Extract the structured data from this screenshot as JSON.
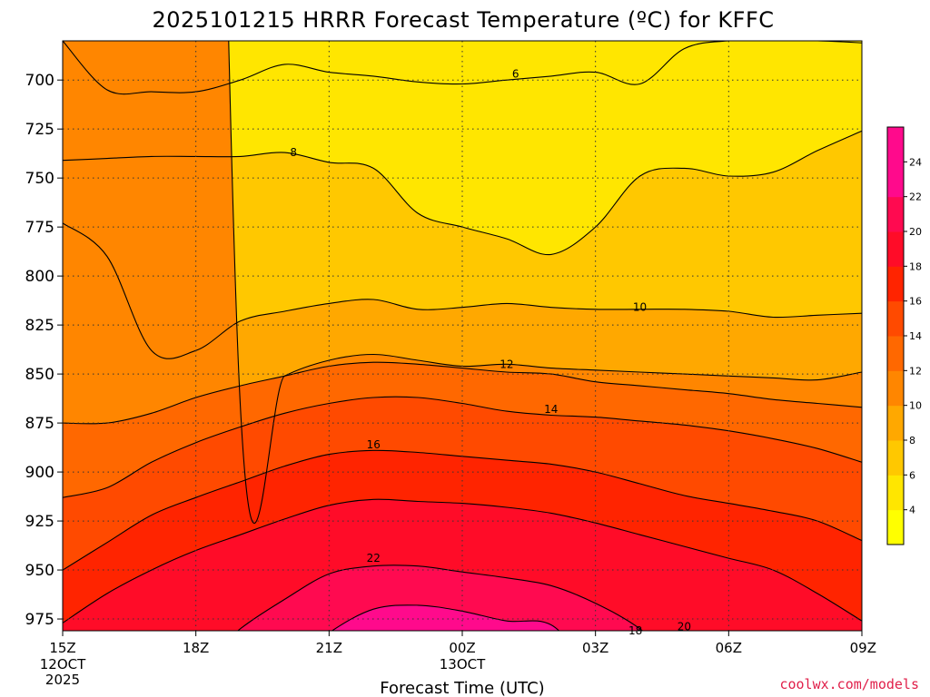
{
  "chart_data": {
    "type": "heatmap",
    "title": "2025101215 HRRR Forecast Temperature (ºC) for KFFC",
    "xlabel": "Forecast Time (UTC)",
    "x_ticks": [
      {
        "label": "15Z",
        "sub": [
          "12OCT",
          "2025"
        ]
      },
      {
        "label": "18Z",
        "sub": []
      },
      {
        "label": "21Z",
        "sub": []
      },
      {
        "label": "00Z",
        "sub": [
          "13OCT"
        ]
      },
      {
        "label": "03Z",
        "sub": []
      },
      {
        "label": "06Z",
        "sub": []
      },
      {
        "label": "09Z",
        "sub": []
      }
    ],
    "y_ticks": [
      "700",
      "725",
      "750",
      "775",
      "800",
      "825",
      "850",
      "875",
      "900",
      "925",
      "950",
      "975"
    ],
    "ylim": [
      981,
      680
    ],
    "grid": true,
    "x_hours": [
      0,
      1,
      2,
      3,
      4,
      5,
      6,
      7,
      8,
      9,
      10,
      11,
      12,
      13,
      14,
      15,
      16,
      17,
      18
    ],
    "contour_levels": [
      {
        "level": 6,
        "label": "6",
        "color": "#ffe600",
        "pressure": [
          680,
          705,
          706,
          706,
          700,
          692,
          696,
          698,
          701,
          702,
          700,
          698,
          696,
          702,
          684,
          680,
          680,
          680,
          681
        ]
      },
      {
        "level": 8,
        "label": "8",
        "color": "#ffc800",
        "pressure": [
          741,
          740,
          739,
          739,
          739,
          737,
          742,
          745,
          768,
          775,
          781,
          789,
          775,
          749,
          745,
          749,
          747,
          736,
          726
        ]
      },
      {
        "level": 10,
        "label": "10",
        "color": "#ffa800",
        "pressure": [
          773,
          790,
          838,
          838,
          823,
          818,
          814,
          812,
          817,
          816,
          814,
          816,
          817,
          817,
          817,
          818,
          821,
          820,
          819
        ]
      },
      {
        "level": 12,
        "label": "12",
        "color": "#ff8600",
        "pressure": [
          0,
          0,
          0,
          0,
          866,
          851,
          843,
          840,
          843,
          846,
          845,
          847,
          848,
          849,
          850,
          851,
          852,
          853,
          849
        ]
      },
      {
        "level": 14,
        "label": "14",
        "color": "#ff6800",
        "pressure": [
          875,
          875,
          870,
          862,
          856,
          851,
          846,
          844,
          845,
          847,
          849,
          850,
          854,
          856,
          858,
          860,
          863,
          865,
          867
        ]
      },
      {
        "level": 16,
        "label": "16",
        "color": "#ff4a00",
        "pressure": [
          913,
          908,
          895,
          885,
          877,
          870,
          865,
          862,
          862,
          865,
          869,
          871,
          872,
          874,
          876,
          879,
          883,
          888,
          895
        ]
      },
      {
        "level": 18,
        "label": "18",
        "color": "#ff2400",
        "pressure": [
          950,
          936,
          922,
          913,
          905,
          897,
          891,
          889,
          890,
          892,
          894,
          896,
          900,
          906,
          912,
          916,
          920,
          925,
          935
        ]
      },
      {
        "level": 20,
        "label": "20",
        "color": "#ff0c28",
        "pressure": [
          977,
          962,
          950,
          940,
          932,
          924,
          917,
          914,
          915,
          916,
          918,
          921,
          926,
          932,
          938,
          944,
          950,
          962,
          976
        ]
      },
      {
        "level": 22,
        "label": "22",
        "color": "#ff0a50",
        "pressure": [
          1000,
          1000,
          1000,
          1000,
          980,
          965,
          952,
          948,
          948,
          951,
          954,
          958,
          967,
          980,
          1000,
          1000,
          1000,
          1000,
          1000
        ]
      },
      {
        "level": 24,
        "label": "24",
        "color": "#ff0a8c",
        "pressure": [
          1000,
          1000,
          1000,
          1000,
          1000,
          1000,
          982,
          970,
          968,
          971,
          976,
          978,
          1000,
          1000,
          1000,
          1000,
          1000,
          1000,
          1000
        ]
      }
    ],
    "top_fill_color": "#ffe600",
    "contour_labels": [
      {
        "level": "6",
        "x_hour": 10.2,
        "pressure": 697
      },
      {
        "level": "8",
        "x_hour": 5.2,
        "pressure": 737
      },
      {
        "level": "10",
        "x_hour": 13.0,
        "pressure": 816
      },
      {
        "level": "12",
        "x_hour": 10.0,
        "pressure": 845
      },
      {
        "level": "14",
        "x_hour": 11.0,
        "pressure": 868
      },
      {
        "level": "16",
        "x_hour": 7.0,
        "pressure": 886
      },
      {
        "level": "18",
        "x_hour": 12.9,
        "pressure": 981
      },
      {
        "level": "20",
        "x_hour": 14.0,
        "pressure": 979
      },
      {
        "level": "22",
        "x_hour": 7.0,
        "pressure": 944
      }
    ],
    "ground_color": "#a0522d",
    "colorbar": {
      "labels": [
        "4",
        "6",
        "8",
        "10",
        "12",
        "14",
        "16",
        "18",
        "20",
        "22",
        "24"
      ],
      "colors": [
        "#ffff00",
        "#ffe600",
        "#ffc800",
        "#ffa800",
        "#ff8600",
        "#ff6800",
        "#ff4a00",
        "#ff2400",
        "#ff0c28",
        "#ff0a50",
        "#ff0a8c",
        "#ff0a8c"
      ]
    }
  },
  "credit": "coolwx.com/models"
}
